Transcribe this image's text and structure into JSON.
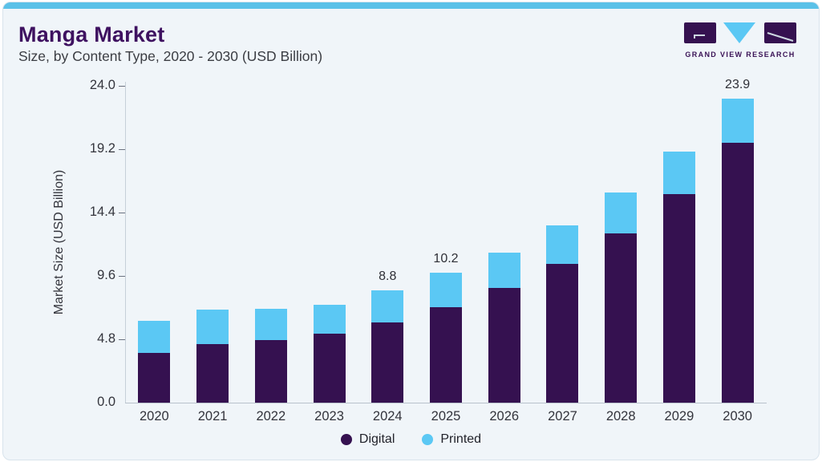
{
  "header": {
    "title": "Manga Market",
    "subtitle": "Size, by Content Type, 2020 - 2030 (USD Billion)",
    "brand": "GRAND VIEW RESEARCH"
  },
  "colors": {
    "digital": "#351150",
    "printed": "#5bc8f4",
    "accent_strip": "#5bc1e8",
    "card_background": "#f0f5f9",
    "title_text": "#3e1160"
  },
  "chart_data": {
    "type": "bar",
    "stacked": true,
    "title": "Manga Market Size, by Content Type, 2020 - 2030 (USD Billion)",
    "categories": [
      "2020",
      "2021",
      "2022",
      "2023",
      "2024",
      "2025",
      "2026",
      "2027",
      "2028",
      "2029",
      "2030"
    ],
    "series": [
      {
        "name": "Digital",
        "color": "#351150",
        "values": [
          3.9,
          4.6,
          4.9,
          5.4,
          6.3,
          7.5,
          9.0,
          10.9,
          13.3,
          16.4,
          20.4
        ]
      },
      {
        "name": "Printed",
        "color": "#5bc8f4",
        "values": [
          2.5,
          2.7,
          2.5,
          2.3,
          2.5,
          2.7,
          2.8,
          3.0,
          3.2,
          3.3,
          3.5
        ]
      }
    ],
    "totals": [
      6.4,
      7.3,
      7.4,
      7.7,
      8.8,
      10.2,
      11.8,
      13.9,
      16.5,
      19.7,
      23.9
    ],
    "value_labels": [
      "",
      "",
      "",
      "",
      "8.8",
      "10.2",
      "",
      "",
      "",
      "",
      "23.9"
    ],
    "ylabel": "Market Size (USD Billion)",
    "ytick_labels": [
      "0.0",
      "4.8",
      "9.6",
      "14.4",
      "19.2",
      "24.0"
    ],
    "yticks": [
      0.0,
      4.8,
      9.6,
      14.4,
      19.2,
      24.0
    ],
    "ylim": [
      0,
      24
    ],
    "grid": false,
    "legend": [
      "Digital",
      "Printed"
    ],
    "legend_position": "bottom"
  }
}
